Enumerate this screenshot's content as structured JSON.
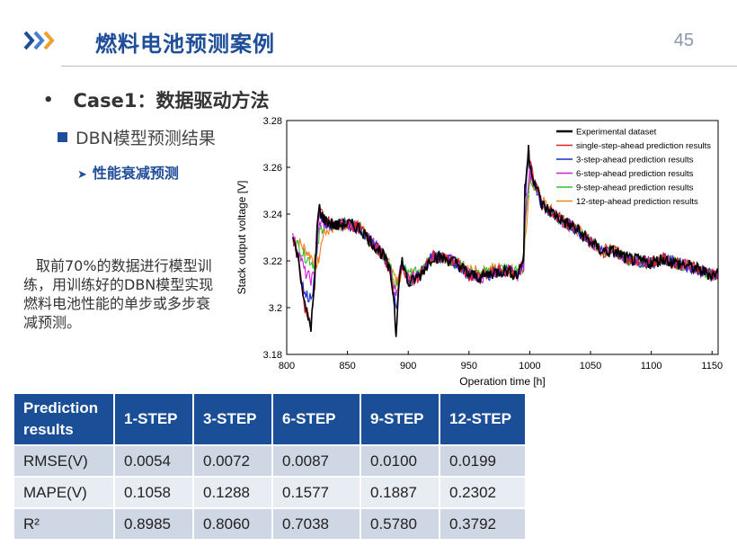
{
  "header": {
    "title": "燃料电池预测案例",
    "page_number": "45",
    "accent_color": "#1f4e99",
    "chevron_colors": [
      "#1f4e99",
      "#4a7fd0",
      "#f0a030"
    ]
  },
  "bullets": {
    "level1": "Case1：数据驱动方法",
    "level2": "DBN模型预测结果",
    "level3": "性能衰减预测"
  },
  "description": "取前70%的数据进行模型训练，用训练好的DBN模型实现燃料电池性能的单步或多步衰减预测。",
  "chart_data": {
    "type": "line",
    "xlabel": "Operation time [h]",
    "ylabel": "Stack output voltage [V]",
    "xlim": [
      800,
      1155
    ],
    "ylim": [
      3.18,
      3.28
    ],
    "xticks": [
      "800",
      "850",
      "900",
      "950",
      "1000",
      "1050",
      "1100",
      "1150"
    ],
    "yticks": [
      "3.18",
      "3.2",
      "3.22",
      "3.24",
      "3.26",
      "3.28"
    ],
    "legend_position": "top-right",
    "series": [
      {
        "name": "Experimental dataset",
        "color": "#000000",
        "lag": 0,
        "x": [
          805,
          810,
          815,
          820,
          823,
          825,
          827,
          830,
          840,
          850,
          860,
          870,
          880,
          885,
          888,
          890,
          892,
          895,
          900,
          910,
          920,
          930,
          940,
          950,
          960,
          970,
          980,
          990,
          995,
          996,
          999,
          1000,
          1005,
          1010,
          1020,
          1030,
          1040,
          1050,
          1060,
          1070,
          1080,
          1090,
          1100,
          1110,
          1120,
          1130,
          1140,
          1150,
          1155
        ],
        "y": [
          3.23,
          3.22,
          3.2,
          3.192,
          3.21,
          3.235,
          3.243,
          3.238,
          3.235,
          3.236,
          3.234,
          3.228,
          3.222,
          3.215,
          3.205,
          3.188,
          3.21,
          3.22,
          3.21,
          3.214,
          3.222,
          3.221,
          3.219,
          3.214,
          3.213,
          3.215,
          3.216,
          3.214,
          3.222,
          3.25,
          3.268,
          3.262,
          3.252,
          3.244,
          3.24,
          3.236,
          3.233,
          3.228,
          3.224,
          3.224,
          3.221,
          3.22,
          3.219,
          3.221,
          3.219,
          3.218,
          3.216,
          3.214,
          3.215
        ]
      },
      {
        "name": "single-step-ahead prediction results",
        "color": "#e0202a",
        "lag": 1,
        "x": [
          805,
          810,
          815,
          820,
          823,
          825,
          827,
          830,
          840,
          850,
          860,
          870,
          880,
          885,
          888,
          890,
          892,
          895,
          900,
          910,
          920,
          930,
          940,
          950,
          960,
          970,
          980,
          990,
          995,
          996,
          999,
          1000,
          1005,
          1010,
          1020,
          1030,
          1040,
          1050,
          1060,
          1070,
          1080,
          1090,
          1100,
          1110,
          1120,
          1130,
          1140,
          1150,
          1155
        ],
        "y": [
          3.23,
          3.22,
          3.2,
          3.192,
          3.21,
          3.235,
          3.243,
          3.238,
          3.235,
          3.236,
          3.234,
          3.228,
          3.222,
          3.215,
          3.205,
          3.188,
          3.21,
          3.22,
          3.21,
          3.214,
          3.222,
          3.221,
          3.219,
          3.214,
          3.213,
          3.215,
          3.216,
          3.214,
          3.222,
          3.25,
          3.268,
          3.262,
          3.252,
          3.244,
          3.24,
          3.236,
          3.233,
          3.228,
          3.224,
          3.224,
          3.221,
          3.22,
          3.219,
          3.221,
          3.219,
          3.218,
          3.216,
          3.214,
          3.215
        ]
      },
      {
        "name": "3-step-ahead prediction results",
        "color": "#1a2ad0",
        "lag": 3,
        "x": [
          805,
          810,
          815,
          820,
          823,
          825,
          827,
          830,
          840,
          850,
          860,
          870,
          880,
          885,
          888,
          890,
          892,
          895,
          900,
          910,
          920,
          930,
          940,
          950,
          960,
          970,
          980,
          990,
          995,
          996,
          999,
          1000,
          1005,
          1010,
          1020,
          1030,
          1040,
          1050,
          1060,
          1070,
          1080,
          1090,
          1100,
          1110,
          1120,
          1130,
          1140,
          1150,
          1155
        ],
        "y": [
          3.23,
          3.22,
          3.205,
          3.205,
          3.212,
          3.232,
          3.24,
          3.236,
          3.235,
          3.236,
          3.234,
          3.228,
          3.222,
          3.216,
          3.208,
          3.198,
          3.21,
          3.219,
          3.211,
          3.214,
          3.222,
          3.221,
          3.219,
          3.214,
          3.213,
          3.215,
          3.216,
          3.214,
          3.22,
          3.245,
          3.262,
          3.26,
          3.252,
          3.244,
          3.24,
          3.236,
          3.233,
          3.228,
          3.224,
          3.224,
          3.221,
          3.22,
          3.219,
          3.221,
          3.219,
          3.218,
          3.216,
          3.214,
          3.215
        ]
      },
      {
        "name": "6-step-ahead prediction results",
        "color": "#d020d0",
        "lag": 6,
        "x": [
          805,
          810,
          815,
          820,
          823,
          825,
          827,
          830,
          840,
          850,
          860,
          870,
          880,
          885,
          888,
          890,
          892,
          895,
          900,
          910,
          920,
          930,
          940,
          950,
          960,
          970,
          980,
          990,
          995,
          996,
          999,
          1000,
          1005,
          1010,
          1020,
          1030,
          1040,
          1050,
          1060,
          1070,
          1080,
          1090,
          1100,
          1110,
          1120,
          1130,
          1140,
          1150,
          1155
        ],
        "y": [
          3.23,
          3.224,
          3.215,
          3.212,
          3.214,
          3.226,
          3.236,
          3.236,
          3.235,
          3.236,
          3.234,
          3.228,
          3.222,
          3.217,
          3.21,
          3.205,
          3.212,
          3.219,
          3.212,
          3.214,
          3.222,
          3.221,
          3.219,
          3.214,
          3.213,
          3.215,
          3.216,
          3.214,
          3.218,
          3.238,
          3.256,
          3.258,
          3.252,
          3.244,
          3.24,
          3.236,
          3.233,
          3.228,
          3.224,
          3.224,
          3.221,
          3.22,
          3.219,
          3.221,
          3.219,
          3.218,
          3.216,
          3.214,
          3.215
        ]
      },
      {
        "name": "9-step-ahead prediction results",
        "color": "#30c030",
        "lag": 9,
        "x": [
          805,
          810,
          815,
          820,
          823,
          825,
          827,
          830,
          840,
          850,
          860,
          870,
          880,
          885,
          888,
          890,
          892,
          895,
          900,
          910,
          920,
          930,
          940,
          950,
          960,
          970,
          980,
          990,
          995,
          996,
          999,
          1000,
          1005,
          1010,
          1020,
          1030,
          1040,
          1050,
          1060,
          1070,
          1080,
          1090,
          1100,
          1110,
          1120,
          1130,
          1140,
          1150,
          1155
        ],
        "y": [
          3.23,
          3.226,
          3.222,
          3.22,
          3.218,
          3.222,
          3.232,
          3.235,
          3.235,
          3.236,
          3.234,
          3.228,
          3.222,
          3.218,
          3.212,
          3.209,
          3.212,
          3.218,
          3.214,
          3.215,
          3.222,
          3.221,
          3.219,
          3.215,
          3.214,
          3.216,
          3.217,
          3.215,
          3.217,
          3.232,
          3.25,
          3.256,
          3.252,
          3.245,
          3.24,
          3.236,
          3.233,
          3.228,
          3.224,
          3.224,
          3.221,
          3.22,
          3.219,
          3.221,
          3.219,
          3.218,
          3.216,
          3.214,
          3.215
        ]
      },
      {
        "name": "12-step-ahead prediction results",
        "color": "#f08020",
        "lag": 12,
        "x": [
          805,
          810,
          815,
          820,
          823,
          825,
          827,
          830,
          840,
          850,
          860,
          870,
          880,
          885,
          888,
          890,
          892,
          895,
          900,
          910,
          920,
          930,
          940,
          950,
          960,
          970,
          980,
          990,
          995,
          996,
          999,
          1000,
          1005,
          1010,
          1020,
          1030,
          1040,
          1050,
          1060,
          1070,
          1080,
          1090,
          1100,
          1110,
          1120,
          1130,
          1140,
          1150,
          1155
        ],
        "y": [
          3.23,
          3.228,
          3.225,
          3.222,
          3.22,
          3.218,
          3.222,
          3.232,
          3.235,
          3.236,
          3.234,
          3.228,
          3.222,
          3.218,
          3.214,
          3.211,
          3.212,
          3.216,
          3.215,
          3.215,
          3.222,
          3.221,
          3.219,
          3.216,
          3.215,
          3.217,
          3.217,
          3.216,
          3.217,
          3.228,
          3.244,
          3.254,
          3.252,
          3.246,
          3.24,
          3.236,
          3.233,
          3.229,
          3.225,
          3.224,
          3.221,
          3.22,
          3.219,
          3.221,
          3.219,
          3.218,
          3.216,
          3.214,
          3.215
        ]
      }
    ]
  },
  "table": {
    "headers": [
      "Prediction results",
      "1-STEP",
      "3-STEP",
      "6-STEP",
      "9-STEP",
      "12-STEP"
    ],
    "rows": [
      [
        "RMSE(V)",
        "0.0054",
        "0.0072",
        "0.0087",
        "0.0100",
        "0.0199"
      ],
      [
        "MAPE(V)",
        "0.1058",
        "0.1288",
        "0.1577",
        "0.1887",
        "0.2302"
      ],
      [
        "R²",
        "0.8985",
        "0.8060",
        "0.7038",
        "0.5780",
        "0.3792"
      ]
    ]
  }
}
